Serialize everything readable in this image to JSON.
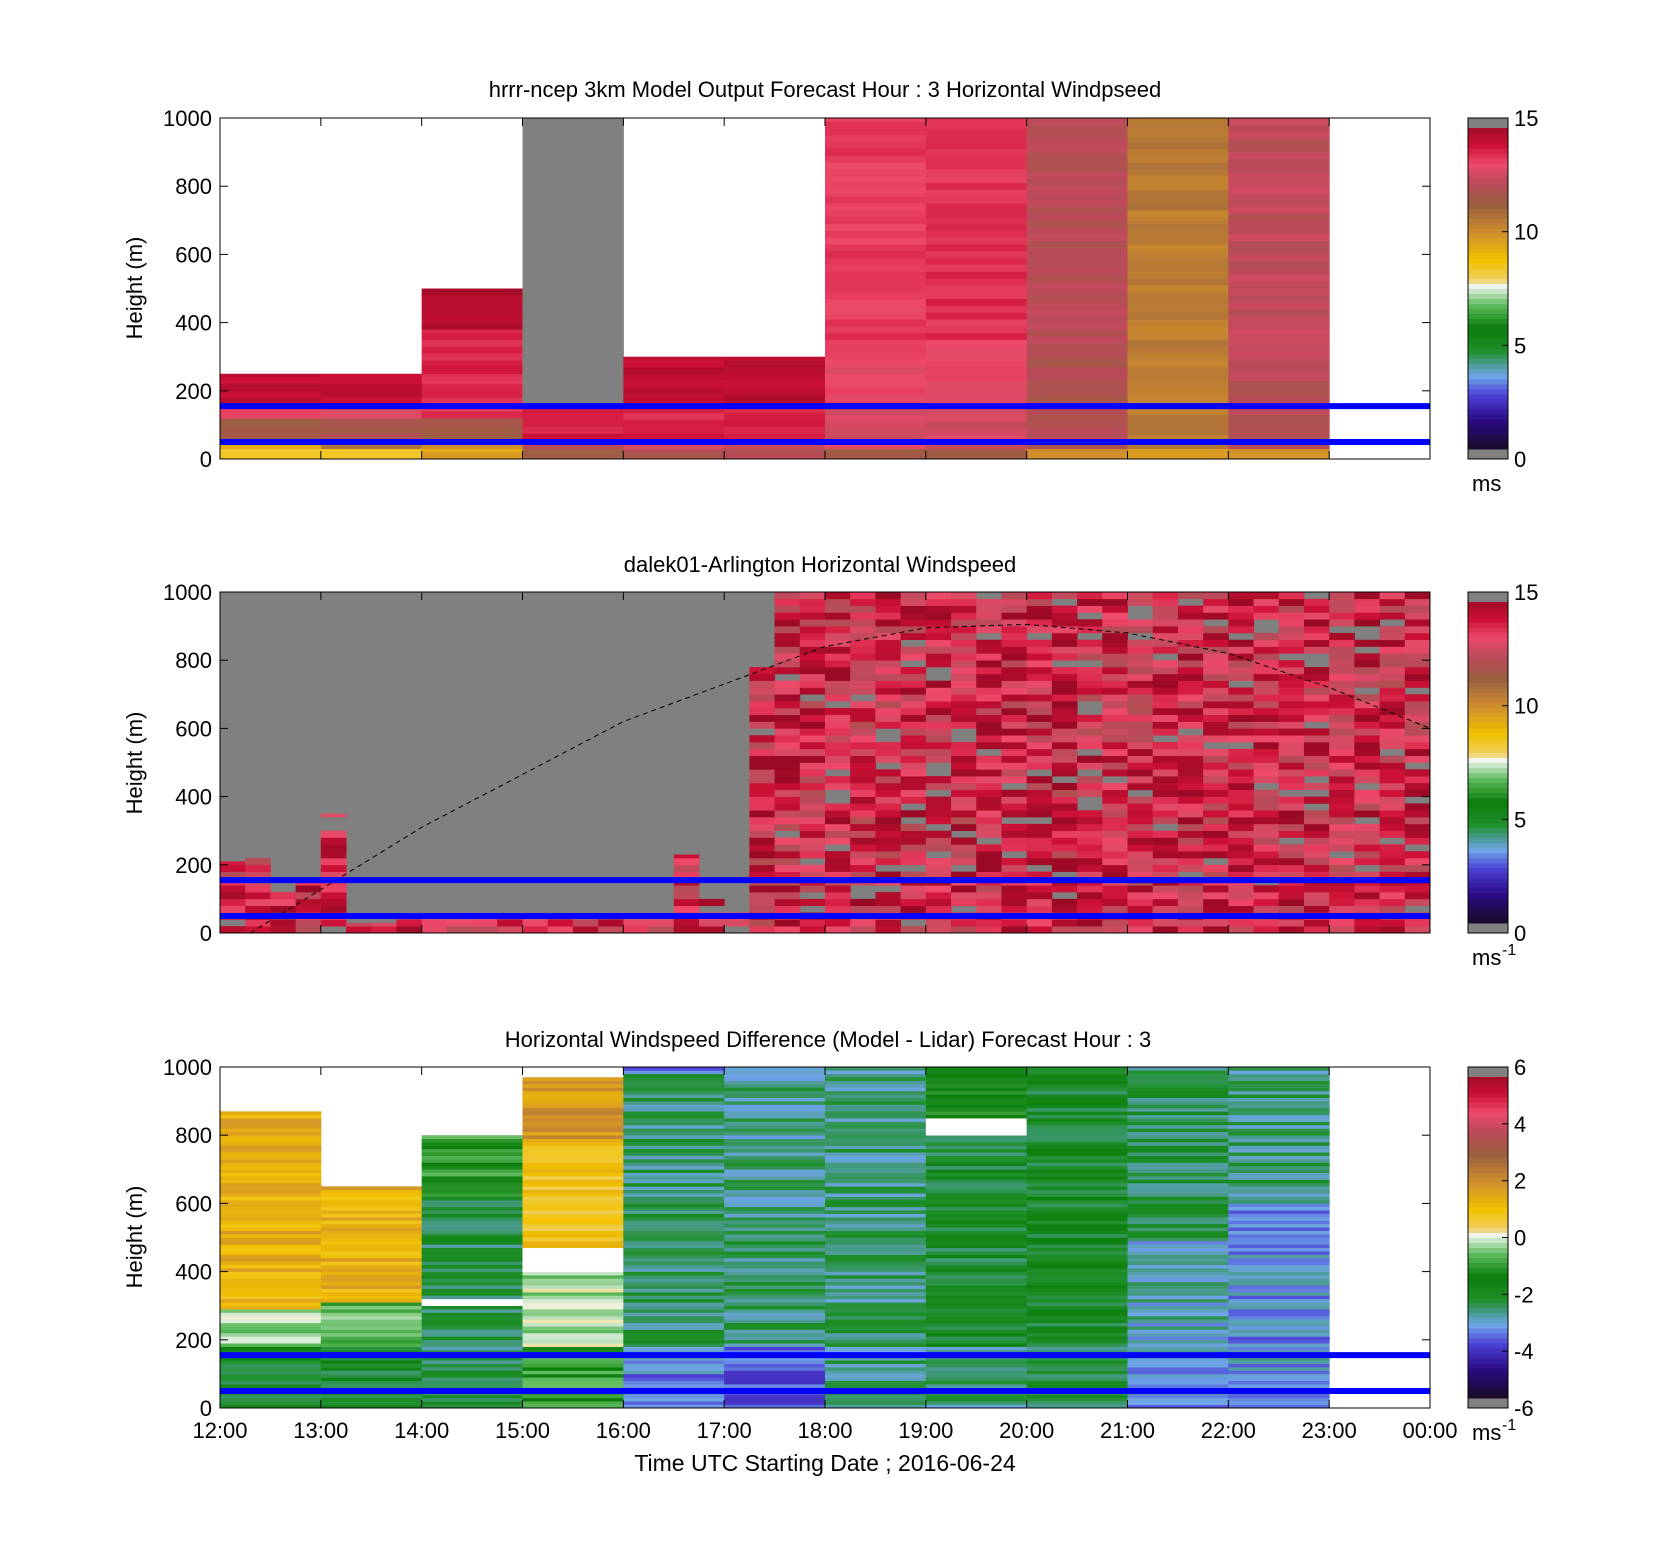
{
  "chart_data": [
    {
      "type": "heatmap",
      "title": "hrrr-ncep 3km Model Output   Forecast Hour : 3 Horizontal Windpseed",
      "ylabel": "Height (m)",
      "xlim": [
        0,
        12
      ],
      "ylim": [
        0,
        1000
      ],
      "yticks": [
        "0",
        "200",
        "400",
        "600",
        "800",
        "1000"
      ],
      "colorbar": {
        "ticks": [
          "0",
          "5",
          "10",
          "15"
        ],
        "range": [
          0,
          15
        ],
        "unit": "ms",
        "unit_sup": ""
      },
      "colormap": "windspeed",
      "reference_lines_m": [
        50,
        155
      ],
      "columns": [
        {
          "x": 0,
          "top": 250,
          "segments": [
            [
              0,
              30,
              8.3
            ],
            [
              30,
              55,
              9.2
            ],
            [
              55,
              120,
              11.5
            ],
            [
              120,
              160,
              13.2
            ],
            [
              160,
              250,
              14.3
            ]
          ]
        },
        {
          "x": 1,
          "top": 250,
          "segments": [
            [
              0,
              30,
              8.5
            ],
            [
              30,
              55,
              10.5
            ],
            [
              55,
              120,
              11.8
            ],
            [
              120,
              160,
              13.0
            ],
            [
              160,
              250,
              14.2
            ]
          ]
        },
        {
          "x": 2,
          "top": 500,
          "segments": [
            [
              0,
              30,
              9.5
            ],
            [
              30,
              55,
              10.2
            ],
            [
              55,
              120,
              11.5
            ],
            [
              120,
              250,
              13.6
            ],
            [
              250,
              380,
              13.8
            ],
            [
              380,
              500,
              14.5
            ]
          ]
        },
        {
          "x": 3,
          "top": 1000,
          "segments": [
            [
              0,
              30,
              11.5
            ],
            [
              30,
              55,
              12.5
            ],
            [
              55,
              150,
              14.0
            ],
            [
              150,
              1000,
              null
            ]
          ]
        },
        {
          "x": 4,
          "top": 300,
          "segments": [
            [
              0,
              30,
              12.0
            ],
            [
              30,
              55,
              12.8
            ],
            [
              55,
              150,
              13.8
            ],
            [
              150,
              300,
              14.3
            ]
          ]
        },
        {
          "x": 5,
          "top": 300,
          "segments": [
            [
              0,
              30,
              12.0
            ],
            [
              30,
              55,
              12.8
            ],
            [
              55,
              150,
              13.8
            ],
            [
              150,
              300,
              14.3
            ]
          ]
        },
        {
          "x": 6,
          "top": 1000,
          "segments": [
            [
              0,
              30,
              11.5
            ],
            [
              30,
              150,
              12.8
            ],
            [
              150,
              350,
              13.2
            ],
            [
              350,
              1000,
              13.4
            ]
          ]
        },
        {
          "x": 7,
          "top": 1000,
          "segments": [
            [
              0,
              30,
              11.5
            ],
            [
              30,
              150,
              12.8
            ],
            [
              150,
              350,
              13.2
            ],
            [
              350,
              1000,
              13.6
            ]
          ]
        },
        {
          "x": 8,
          "top": 1000,
          "segments": [
            [
              0,
              30,
              10.0
            ],
            [
              30,
              300,
              12.0
            ],
            [
              300,
              1000,
              12.2
            ]
          ]
        },
        {
          "x": 9,
          "top": 1000,
          "segments": [
            [
              0,
              30,
              9.5
            ],
            [
              30,
              1000,
              10.5
            ]
          ]
        },
        {
          "x": 10,
          "top": 1000,
          "segments": [
            [
              0,
              30,
              9.8
            ],
            [
              30,
              300,
              12.2
            ],
            [
              300,
              1000,
              12.4
            ]
          ]
        }
      ]
    },
    {
      "type": "heatmap",
      "title": "dalek01-Arlington  Horizontal Windspeed",
      "ylabel": "Height (m)",
      "xlim": [
        0,
        12
      ],
      "ylim": [
        0,
        1000
      ],
      "yticks": [
        "0",
        "200",
        "400",
        "600",
        "800",
        "1000"
      ],
      "colorbar": {
        "ticks": [
          "0",
          "5",
          "10",
          "15"
        ],
        "range": [
          0,
          15
        ],
        "unit": "ms",
        "unit_sup": "-1"
      },
      "colormap": "windspeed",
      "reference_lines_m": [
        50,
        155
      ],
      "overlay_curve": [
        [
          0.3,
          0
        ],
        [
          2,
          310
        ],
        [
          4,
          620
        ],
        [
          6,
          840
        ],
        [
          7,
          895
        ],
        [
          8,
          905
        ],
        [
          9,
          880
        ],
        [
          10,
          820
        ],
        [
          11,
          720
        ],
        [
          12,
          600
        ]
      ],
      "columns_per_hour": 4,
      "profile_tops": [
        210,
        270,
        220,
        120,
        120,
        120,
        160,
        150,
        350,
        120,
        30,
        40,
        30,
        60,
        40,
        40,
        40,
        40,
        40,
        40,
        40,
        40,
        40,
        40,
        40,
        40,
        40,
        40,
        40,
        40,
        40,
        40,
        40,
        40,
        40,
        40,
        230,
        300,
        100,
        60,
        60,
        650,
        800,
        1000,
        1000,
        1000,
        1000,
        1000,
        1000,
        1000,
        1000,
        1000,
        1000,
        1000,
        1000,
        1000,
        1000,
        1000,
        1000,
        1000,
        1000,
        1000,
        1000,
        1000,
        1000,
        1000,
        1000,
        1000,
        1000,
        1000,
        1000,
        1000,
        1000,
        1000,
        1000,
        1000,
        1000,
        1000,
        1000,
        1000,
        1000,
        1000,
        1000,
        1000,
        1000,
        1000,
        1000,
        1000,
        1000,
        1000,
        1000,
        1000,
        1000
      ],
      "gap_bands": [
        [
          47,
          450,
          650
        ],
        [
          48,
          450,
          650
        ],
        [
          49,
          450,
          600
        ],
        [
          50,
          450,
          600
        ],
        [
          51,
          450,
          600
        ],
        [
          52,
          450,
          600
        ]
      ],
      "mean_speed": 13.6
    },
    {
      "type": "heatmap",
      "title": "Horizontal Windspeed Difference (Model - Lidar) Forecast Hour : 3",
      "ylabel": "Height (m)",
      "xlabel": "Time UTC  Starting Date ; 2016-06-24",
      "xticks": [
        "12:00",
        "13:00",
        "14:00",
        "15:00",
        "16:00",
        "17:00",
        "18:00",
        "19:00",
        "20:00",
        "21:00",
        "22:00",
        "23:00",
        "00:00"
      ],
      "xlim": [
        0,
        12
      ],
      "ylim": [
        0,
        1000
      ],
      "yticks": [
        "0",
        "200",
        "400",
        "600",
        "800",
        "1000"
      ],
      "colorbar": {
        "ticks": [
          "-6",
          "-4",
          "-2",
          "0",
          "2",
          "4",
          "6"
        ],
        "range": [
          -6,
          6
        ],
        "unit": "ms",
        "unit_sup": "-1"
      },
      "colormap": "difference",
      "reference_lines_m": [
        50,
        155
      ],
      "columns": [
        {
          "x": 0,
          "top": 870,
          "segments": [
            [
              0,
              180,
              -2.2
            ],
            [
              180,
              290,
              -0.3
            ],
            [
              290,
              870,
              1.3
            ]
          ]
        },
        {
          "x": 1,
          "top": 650,
          "segments": [
            [
              0,
              180,
              -2.2
            ],
            [
              180,
              310,
              -0.8
            ],
            [
              310,
              650,
              1.3
            ]
          ]
        },
        {
          "x": 2,
          "top": 800,
          "segments": [
            [
              0,
              300,
              -2.6
            ],
            [
              300,
              320,
              null
            ],
            [
              320,
              620,
              -2.5
            ],
            [
              620,
              800,
              -1.2
            ]
          ]
        },
        {
          "x": 3,
          "top": 970,
          "segments": [
            [
              0,
              180,
              -1.2
            ],
            [
              180,
              400,
              -0.4
            ],
            [
              400,
              470,
              null
            ],
            [
              470,
              780,
              0.8
            ],
            [
              780,
              970,
              1.8
            ]
          ]
        },
        {
          "x": 4,
          "top": 1000,
          "segments": [
            [
              0,
              180,
              -3.6
            ],
            [
              180,
              580,
              -2.6
            ],
            [
              580,
              980,
              -2.7
            ],
            [
              980,
              1000,
              -3.5
            ]
          ]
        },
        {
          "x": 5,
          "top": 1000,
          "segments": [
            [
              0,
              180,
              -3.8
            ],
            [
              180,
              560,
              -2.7
            ],
            [
              560,
              1000,
              -2.9
            ]
          ]
        },
        {
          "x": 6,
          "top": 1000,
          "segments": [
            [
              0,
              80,
              -2.6
            ],
            [
              80,
              1000,
              -2.8
            ]
          ]
        },
        {
          "x": 7,
          "top": 1000,
          "segments": [
            [
              0,
              180,
              -2.8
            ],
            [
              180,
              800,
              -2.3
            ],
            [
              800,
              850,
              null
            ],
            [
              850,
              1000,
              -1.6
            ]
          ]
        },
        {
          "x": 8,
          "top": 1000,
          "segments": [
            [
              0,
              180,
              -2.6
            ],
            [
              180,
              1000,
              -2.2
            ]
          ]
        },
        {
          "x": 9,
          "top": 1000,
          "segments": [
            [
              0,
              180,
              -3.4
            ],
            [
              180,
              500,
              -3.1
            ],
            [
              500,
              1000,
              -2.5
            ]
          ]
        },
        {
          "x": 10,
          "top": 1000,
          "segments": [
            [
              0,
              180,
              -3.4
            ],
            [
              180,
              600,
              -3.5
            ],
            [
              600,
              1000,
              -2.8
            ]
          ]
        }
      ]
    }
  ]
}
